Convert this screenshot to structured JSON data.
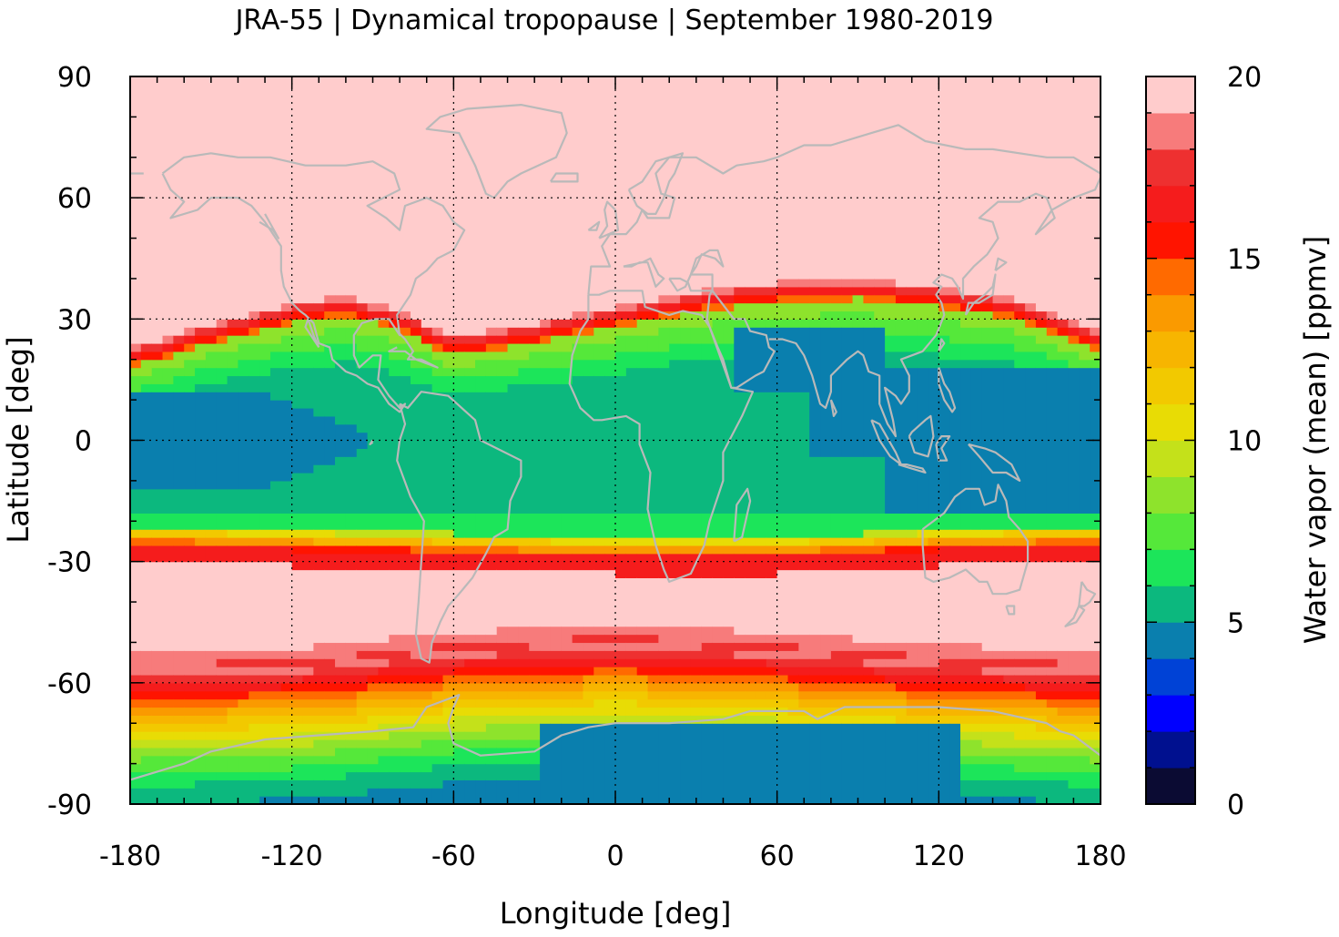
{
  "chart_data": {
    "type": "heatmap",
    "title": "JRA-55 | Dynamical tropopause | September 1980-2019",
    "xlabel": "Longitude [deg]",
    "ylabel": "Latitude [deg]",
    "colorbar_label": "Water vapor (mean) [ppmv]",
    "xlim": [
      -180,
      180
    ],
    "ylim": [
      -90,
      90
    ],
    "x_ticks": [
      "-180",
      "-120",
      "-60",
      "0",
      "60",
      "120",
      "180"
    ],
    "y_ticks": [
      "-90",
      "-60",
      "-30",
      "0",
      "30",
      "60",
      "90"
    ],
    "x_tick_values": [
      -180,
      -120,
      -60,
      0,
      60,
      120,
      180
    ],
    "y_tick_values": [
      -90,
      -60,
      -30,
      0,
      30,
      60,
      90
    ],
    "grid": true,
    "colorbar": {
      "range": [
        0,
        20
      ],
      "ticks": [
        "0",
        "5",
        "10",
        "15",
        "20"
      ],
      "tick_values": [
        0,
        5,
        10,
        15,
        20
      ],
      "levels": [
        {
          "from": 0,
          "to": 1,
          "color": "#0b0b33"
        },
        {
          "from": 1,
          "to": 2,
          "color": "#00108f"
        },
        {
          "from": 2,
          "to": 3,
          "color": "#0000ff"
        },
        {
          "from": 3,
          "to": 4,
          "color": "#0042d6"
        },
        {
          "from": 4,
          "to": 5,
          "color": "#0a7fae"
        },
        {
          "from": 5,
          "to": 6,
          "color": "#0cb87e"
        },
        {
          "from": 6,
          "to": 7,
          "color": "#1ce55a"
        },
        {
          "from": 7,
          "to": 8,
          "color": "#55e83a"
        },
        {
          "from": 8,
          "to": 9,
          "color": "#8ee32c"
        },
        {
          "from": 9,
          "to": 10,
          "color": "#c4e11a"
        },
        {
          "from": 10,
          "to": 11,
          "color": "#e8dc05"
        },
        {
          "from": 11,
          "to": 12,
          "color": "#f2c900"
        },
        {
          "from": 12,
          "to": 13,
          "color": "#f7b500"
        },
        {
          "from": 13,
          "to": 14,
          "color": "#fa9a00"
        },
        {
          "from": 14,
          "to": 15,
          "color": "#ff6a00"
        },
        {
          "from": 15,
          "to": 16,
          "color": "#ff1400"
        },
        {
          "from": 16,
          "to": 17,
          "color": "#f51c1c"
        },
        {
          "from": 17,
          "to": 18,
          "color": "#ee3030"
        },
        {
          "from": 18,
          "to": 19,
          "color": "#f77b7b"
        },
        {
          "from": 19,
          "to": 20,
          "color": "#ffcccc"
        }
      ]
    },
    "zonal_profile": {
      "description_note": "",
      "lat": [
        -90,
        -80,
        -70,
        -65,
        -60,
        -55,
        -50,
        -45,
        -40,
        -35,
        -30,
        -27,
        -25,
        -20,
        -15,
        -10,
        0,
        10,
        15,
        20,
        25,
        30,
        40,
        60,
        90
      ],
      "value": [
        4.5,
        4.8,
        6.0,
        8.0,
        11.0,
        16.0,
        19.0,
        20.0,
        20.0,
        20.0,
        16.0,
        14.0,
        10.0,
        6.5,
        5.5,
        5.0,
        4.5,
        5.0,
        5.5,
        6.5,
        9.0,
        17.0,
        20.0,
        20.0,
        20.0
      ]
    },
    "fields": {
      "south_polar_band_top_lat": [
        [
          -180,
          -57
        ],
        [
          -120,
          -56
        ],
        [
          -60,
          -52
        ],
        [
          0,
          -50
        ],
        [
          60,
          -52
        ],
        [
          120,
          -55
        ],
        [
          180,
          -57
        ]
      ],
      "south_subtropical_jet_lat": [
        [
          -180,
          -28
        ],
        [
          -120,
          -29
        ],
        [
          -60,
          -30
        ],
        [
          0,
          -31
        ],
        [
          60,
          -31
        ],
        [
          120,
          -29
        ],
        [
          180,
          -28
        ]
      ],
      "north_subtropical_jet_lat": [
        [
          -180,
          21
        ],
        [
          -150,
          27
        ],
        [
          -120,
          32
        ],
        [
          -100,
          34
        ],
        [
          -80,
          30
        ],
        [
          -60,
          24
        ],
        [
          -30,
          27
        ],
        [
          0,
          31
        ],
        [
          30,
          35
        ],
        [
          60,
          37
        ],
        [
          90,
          38
        ],
        [
          120,
          36
        ],
        [
          150,
          33
        ],
        [
          180,
          25
        ]
      ],
      "tropical_dry_regions": [
        {
          "lon": [
            -180,
            -90
          ],
          "lat": [
            -12,
            12
          ]
        },
        {
          "lon": [
            100,
            180
          ],
          "lat": [
            -18,
            18
          ]
        },
        {
          "lon": [
            45,
            100
          ],
          "lat": [
            12,
            30
          ]
        },
        {
          "lon": [
            -30,
            130
          ],
          "lat": [
            -92,
            -65
          ]
        }
      ]
    }
  }
}
